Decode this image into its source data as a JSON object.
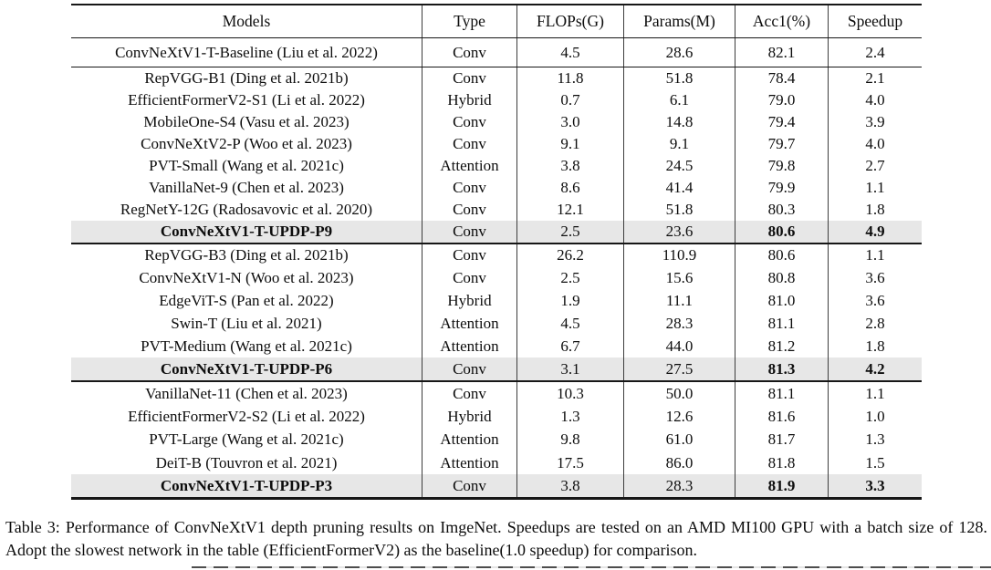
{
  "page": {
    "caption": "Table 3: Performance of ConvNeXtV1 depth pruning results on ImgeNet. Speedups are tested on an AMD MI100 GPU with a batch size of 128. Adopt the slowest network in the table (EfficientFormerV2) as the baseline(1.0 speedup) for comparison."
  },
  "colors": {
    "highlight_row": "#e7e7e7",
    "rule": "#171717",
    "column_divider": "#3d3d3d",
    "text": "#0d0d0d"
  },
  "table": {
    "columns": [
      "Models",
      "Type",
      "FLOPs(G)",
      "Params(M)",
      "Acc1(%)",
      "Speedup"
    ],
    "groups": [
      {
        "rows": [
          {
            "model": "ConvNeXtV1-T-Baseline (Liu et al. 2022)",
            "type": "Conv",
            "flops": "4.5",
            "params": "28.6",
            "acc1": "82.1",
            "speedup": "2.4",
            "highlight": false
          }
        ]
      },
      {
        "rows": [
          {
            "model": "RepVGG-B1 (Ding et al. 2021b)",
            "type": "Conv",
            "flops": "11.8",
            "params": "51.8",
            "acc1": "78.4",
            "speedup": "2.1",
            "highlight": false
          },
          {
            "model": "EfficientFormerV2-S1 (Li et al. 2022)",
            "type": "Hybrid",
            "flops": "0.7",
            "params": "6.1",
            "acc1": "79.0",
            "speedup": "4.0",
            "highlight": false
          },
          {
            "model": "MobileOne-S4 (Vasu et al. 2023)",
            "type": "Conv",
            "flops": "3.0",
            "params": "14.8",
            "acc1": "79.4",
            "speedup": "3.9",
            "highlight": false
          },
          {
            "model": "ConvNeXtV2-P (Woo et al. 2023)",
            "type": "Conv",
            "flops": "9.1",
            "params": "9.1",
            "acc1": "79.7",
            "speedup": "4.0",
            "highlight": false
          },
          {
            "model": "PVT-Small (Wang et al. 2021c)",
            "type": "Attention",
            "flops": "3.8",
            "params": "24.5",
            "acc1": "79.8",
            "speedup": "2.7",
            "highlight": false
          },
          {
            "model": "VanillaNet-9 (Chen et al. 2023)",
            "type": "Conv",
            "flops": "8.6",
            "params": "41.4",
            "acc1": "79.9",
            "speedup": "1.1",
            "highlight": false
          },
          {
            "model": "RegNetY-12G (Radosavovic et al. 2020)",
            "type": "Conv",
            "flops": "12.1",
            "params": "51.8",
            "acc1": "80.3",
            "speedup": "1.8",
            "highlight": false
          },
          {
            "model": "ConvNeXtV1-T-UPDP-P9",
            "type": "Conv",
            "flops": "2.5",
            "params": "23.6",
            "acc1": "80.6",
            "speedup": "4.9",
            "highlight": true
          }
        ]
      },
      {
        "rows": [
          {
            "model": "RepVGG-B3 (Ding et al. 2021b)",
            "type": "Conv",
            "flops": "26.2",
            "params": "110.9",
            "acc1": "80.6",
            "speedup": "1.1",
            "highlight": false
          },
          {
            "model": "ConvNeXtV1-N (Woo et al. 2023)",
            "type": "Conv",
            "flops": "2.5",
            "params": "15.6",
            "acc1": "80.8",
            "speedup": "3.6",
            "highlight": false
          },
          {
            "model": "EdgeViT-S (Pan et al. 2022)",
            "type": "Hybrid",
            "flops": "1.9",
            "params": "11.1",
            "acc1": "81.0",
            "speedup": "3.6",
            "highlight": false
          },
          {
            "model": "Swin-T (Liu et al. 2021)",
            "type": "Attention",
            "flops": "4.5",
            "params": "28.3",
            "acc1": "81.1",
            "speedup": "2.8",
            "highlight": false
          },
          {
            "model": "PVT-Medium (Wang et al. 2021c)",
            "type": "Attention",
            "flops": "6.7",
            "params": "44.0",
            "acc1": "81.2",
            "speedup": "1.8",
            "highlight": false
          },
          {
            "model": "ConvNeXtV1-T-UPDP-P6",
            "type": "Conv",
            "flops": "3.1",
            "params": "27.5",
            "acc1": "81.3",
            "speedup": "4.2",
            "highlight": true
          }
        ]
      },
      {
        "rows": [
          {
            "model": "VanillaNet-11 (Chen et al. 2023)",
            "type": "Conv",
            "flops": "10.3",
            "params": "50.0",
            "acc1": "81.1",
            "speedup": "1.1",
            "highlight": false
          },
          {
            "model": "EfficientFormerV2-S2 (Li et al. 2022)",
            "type": "Hybrid",
            "flops": "1.3",
            "params": "12.6",
            "acc1": "81.6",
            "speedup": "1.0",
            "highlight": false
          },
          {
            "model": "PVT-Large (Wang et al. 2021c)",
            "type": "Attention",
            "flops": "9.8",
            "params": "61.0",
            "acc1": "81.7",
            "speedup": "1.3",
            "highlight": false
          },
          {
            "model": "DeiT-B (Touvron et al. 2021)",
            "type": "Attention",
            "flops": "17.5",
            "params": "86.0",
            "acc1": "81.8",
            "speedup": "1.5",
            "highlight": false
          },
          {
            "model": "ConvNeXtV1-T-UPDP-P3",
            "type": "Conv",
            "flops": "3.8",
            "params": "28.3",
            "acc1": "81.9",
            "speedup": "3.3",
            "highlight": true
          }
        ]
      }
    ]
  }
}
